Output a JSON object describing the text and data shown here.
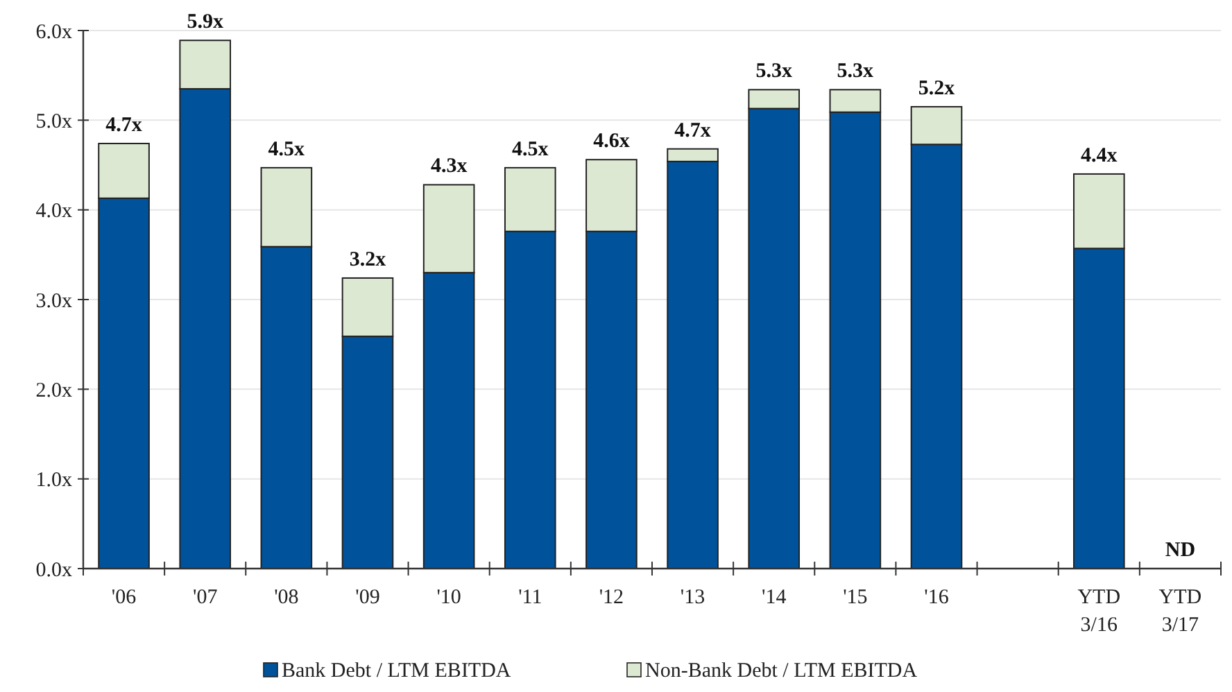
{
  "chart_data": {
    "type": "bar",
    "stacked": true,
    "categories": [
      "'06",
      "'07",
      "'08",
      "'09",
      "'10",
      "'11",
      "'12",
      "'13",
      "'14",
      "'15",
      "'16",
      null,
      "YTD 3/16",
      "YTD 3/17"
    ],
    "series": [
      {
        "name": "Bank Debt / LTM EBITDA",
        "color": "#00539b",
        "values": [
          4.13,
          5.35,
          3.59,
          2.59,
          3.3,
          3.76,
          3.76,
          4.54,
          5.13,
          5.09,
          4.73,
          null,
          3.57,
          null
        ]
      },
      {
        "name": "Non-Bank Debt / LTM EBITDA",
        "color": "#dde8d3",
        "values": [
          0.61,
          0.54,
          0.88,
          0.65,
          0.98,
          0.71,
          0.8,
          0.14,
          0.21,
          0.25,
          0.42,
          null,
          0.83,
          null
        ]
      }
    ],
    "totals": [
      "4.7x",
      "5.9x",
      "4.5x",
      "3.2x",
      "4.3x",
      "4.5x",
      "4.6x",
      "4.7x",
      "5.3x",
      "5.3x",
      "5.2x",
      null,
      "4.4x",
      "ND"
    ],
    "ylim": [
      0,
      6
    ],
    "yticks": [
      {
        "value": 0,
        "label": "0.0x"
      },
      {
        "value": 1,
        "label": "1.0x"
      },
      {
        "value": 2,
        "label": "2.0x"
      },
      {
        "value": 3,
        "label": "3.0x"
      },
      {
        "value": 4,
        "label": "4.0x"
      },
      {
        "value": 5,
        "label": "5.0x"
      },
      {
        "value": 6,
        "label": "6.0x"
      }
    ],
    "grid": "y",
    "legend": "bottom"
  }
}
